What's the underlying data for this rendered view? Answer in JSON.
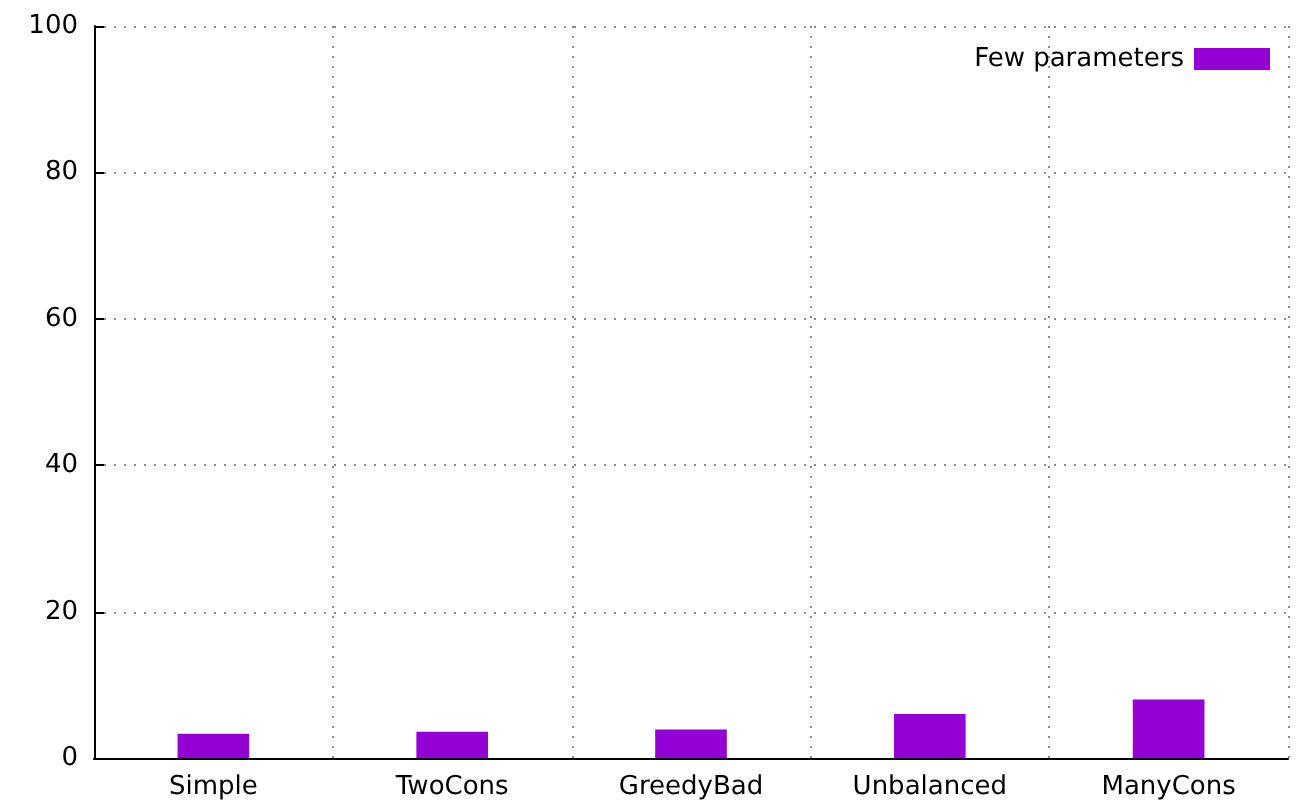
{
  "chart_data": {
    "type": "bar",
    "categories": [
      "Simple",
      "TwoCons",
      "GreedyBad",
      "Unbalanced",
      "ManyCons"
    ],
    "series": [
      {
        "name": "Few parameters",
        "color": "#9400d3",
        "values": [
          3.3,
          3.6,
          3.9,
          6.0,
          8.0
        ]
      }
    ],
    "ylim": [
      0,
      100
    ],
    "yticks": [
      0,
      20,
      40,
      60,
      80,
      100
    ],
    "grid": true,
    "legend": "top right"
  }
}
